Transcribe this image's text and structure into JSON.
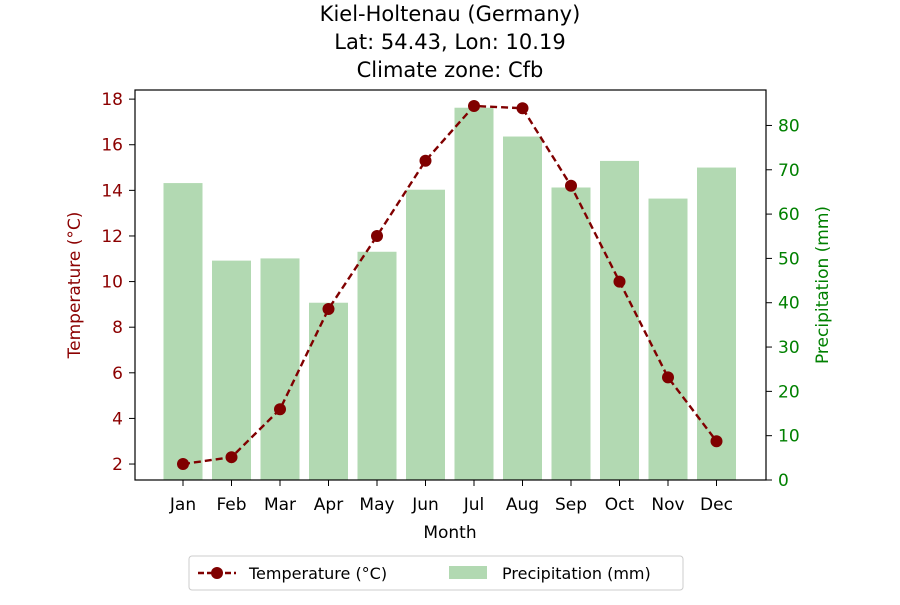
{
  "chart_data": {
    "type": "bar+line",
    "title_lines": [
      "Kiel-Holtenau (Germany)",
      "Lat: 54.43, Lon: 10.19",
      "Climate zone: Cfb"
    ],
    "xlabel": "Month",
    "ylabel_left": "Temperature (°C)",
    "ylabel_right": "Precipitation (mm)",
    "categories": [
      "Jan",
      "Feb",
      "Mar",
      "Apr",
      "May",
      "Jun",
      "Jul",
      "Aug",
      "Sep",
      "Oct",
      "Nov",
      "Dec"
    ],
    "temperature": {
      "name": "Temperature (°C)",
      "color": "#800000",
      "style": "dashed line with circle markers",
      "values": [
        2.0,
        2.3,
        4.4,
        8.8,
        12.0,
        15.3,
        17.7,
        17.6,
        14.2,
        10.0,
        5.8,
        3.0
      ]
    },
    "precipitation": {
      "name": "Precipitation (mm)",
      "color": "#b2d9b2",
      "values": [
        67,
        49.5,
        50,
        40,
        51.5,
        65.5,
        84,
        77.5,
        66,
        72,
        63.5,
        70.5
      ]
    },
    "ylim_left": [
      1.3,
      18.4
    ],
    "ylim_right": [
      0,
      88
    ],
    "yticks_left": [
      "2",
      "4",
      "6",
      "8",
      "10",
      "12",
      "14",
      "16",
      "18"
    ],
    "yticks_right": [
      "0",
      "10",
      "20",
      "30",
      "40",
      "50",
      "60",
      "70",
      "80"
    ],
    "left_axis_color": "#8b0000",
    "right_axis_color": "#008000",
    "legend_position": "bottom-center"
  }
}
